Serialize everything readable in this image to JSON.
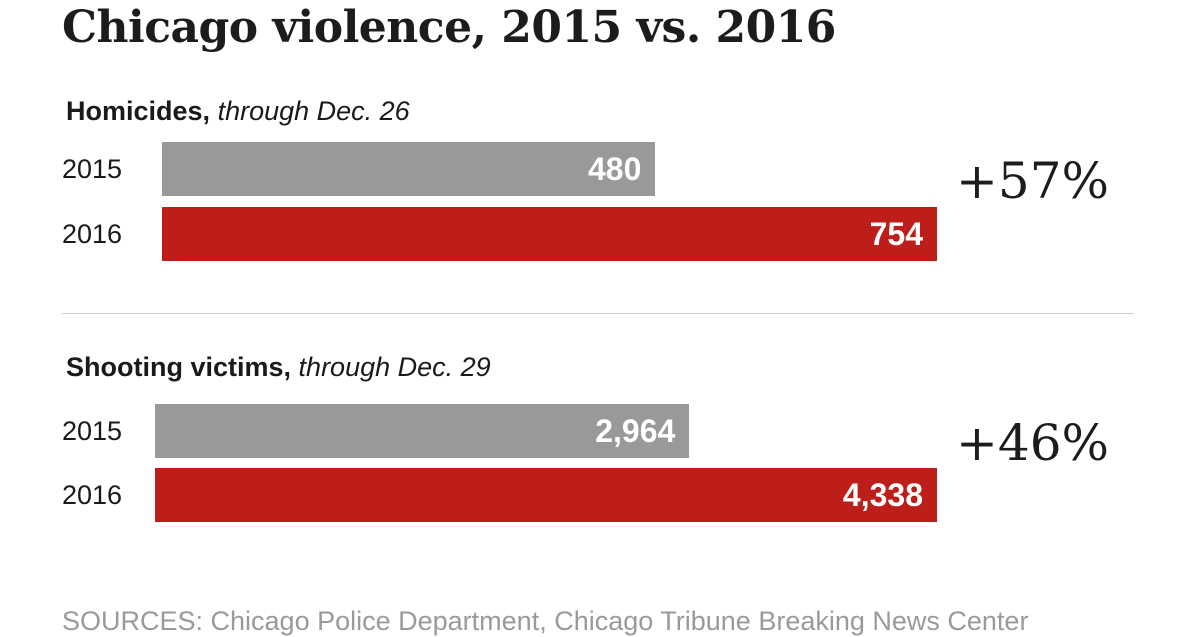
{
  "chart_data": {
    "type": "bar",
    "title": "Chicago violence, 2015 vs. 2016",
    "categories": [
      "2015",
      "2016"
    ],
    "colors": {
      "2015": "#999999",
      "2016": "#be1e1a"
    },
    "panels": [
      {
        "label": "Homicides,",
        "subtitle": "through Dec. 26",
        "bars": [
          {
            "year": "2015",
            "value": 480,
            "display": "480"
          },
          {
            "year": "2016",
            "value": 754,
            "display": "754"
          }
        ],
        "change": "+57%"
      },
      {
        "label": "Shooting victims,",
        "subtitle": "through Dec. 29",
        "bars": [
          {
            "year": "2015",
            "value": 2964,
            "display": "2,964"
          },
          {
            "year": "2016",
            "value": 4338,
            "display": "4,338"
          }
        ],
        "change": "+46%"
      }
    ],
    "source": "SOURCES: Chicago Police Department, Chicago Tribune Breaking News Center"
  }
}
